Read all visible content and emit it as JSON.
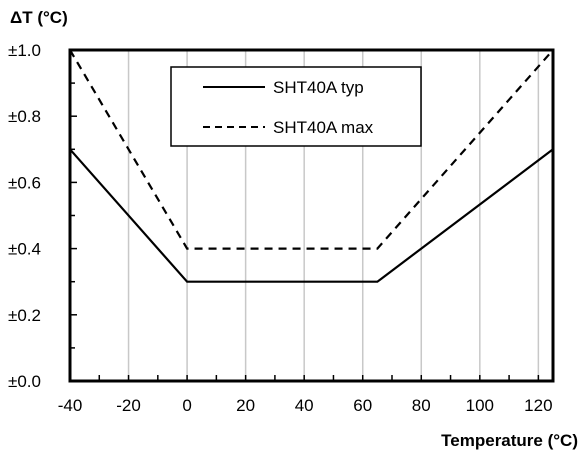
{
  "chart_data": {
    "type": "line",
    "xlabel": "Temperature (°C)",
    "ylabel": "ΔT (°C)",
    "xlim": [
      -40,
      125
    ],
    "ylim": [
      0,
      1.0
    ],
    "x_ticks": [
      -40,
      -20,
      0,
      20,
      40,
      60,
      80,
      100,
      120
    ],
    "x_tick_labels": [
      "-40",
      "-20",
      "0",
      "20",
      "40",
      "60",
      "80",
      "100",
      "120"
    ],
    "y_ticks": [
      0,
      0.2,
      0.4,
      0.6,
      0.8,
      1.0
    ],
    "y_tick_labels": [
      "±0.0",
      "±0.2",
      "±0.4",
      "±0.6",
      "±0.8",
      "±1.0"
    ],
    "grid": "vertical",
    "legend_position": "top-center",
    "series": [
      {
        "name": "SHT40A typ",
        "style": "solid",
        "color": "#000000",
        "x": [
          -40,
          0,
          65,
          125
        ],
        "y": [
          0.7,
          0.3,
          0.3,
          0.7
        ]
      },
      {
        "name": "SHT40A max",
        "style": "dashed",
        "color": "#000000",
        "x": [
          -40,
          0,
          65,
          125
        ],
        "y": [
          1.0,
          0.4,
          0.4,
          1.0
        ]
      }
    ]
  }
}
